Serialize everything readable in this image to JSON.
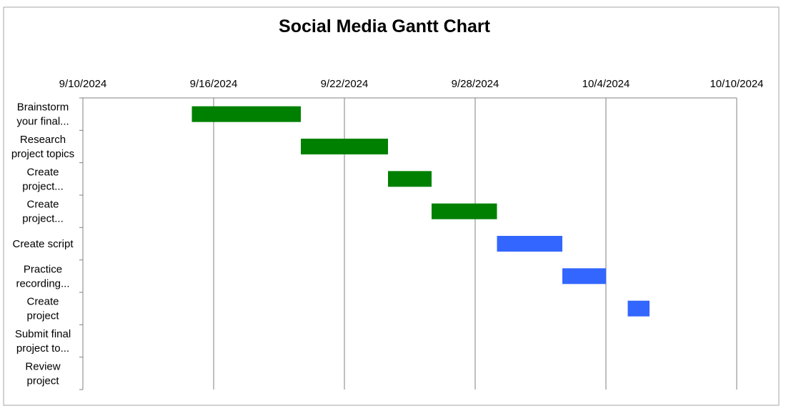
{
  "chart_data": {
    "type": "bar",
    "subtype": "gantt",
    "title": "Social Media Gantt Chart",
    "xlabel": "",
    "ylabel": "",
    "x_axis_position": "top",
    "xlim": [
      "9/10/2024",
      "10/10/2024"
    ],
    "x_ticks": [
      "9/10/2024",
      "9/16/2024",
      "9/22/2024",
      "9/28/2024",
      "10/4/2024",
      "10/10/2024"
    ],
    "grid": true,
    "legend": "none",
    "colors": {
      "phase_1": "#008000",
      "phase_2": "#3366FF",
      "gridline": "#808080",
      "border": "#A6A6A6"
    },
    "tasks": [
      {
        "label_lines": [
          "Brainstorm",
          "your final..."
        ],
        "start": "9/15/2024",
        "duration_days": 5,
        "color": "#008000"
      },
      {
        "label_lines": [
          "Research",
          "project topics"
        ],
        "start": "9/20/2024",
        "duration_days": 4,
        "color": "#008000"
      },
      {
        "label_lines": [
          "Create",
          "project..."
        ],
        "start": "9/24/2024",
        "duration_days": 2,
        "color": "#008000"
      },
      {
        "label_lines": [
          "Create",
          "project..."
        ],
        "start": "9/26/2024",
        "duration_days": 3,
        "color": "#008000"
      },
      {
        "label_lines": [
          "Create script"
        ],
        "start": "9/29/2024",
        "duration_days": 3,
        "color": "#3366FF"
      },
      {
        "label_lines": [
          "Practice",
          "recording..."
        ],
        "start": "10/2/2024",
        "duration_days": 2,
        "color": "#3366FF"
      },
      {
        "label_lines": [
          "Create",
          "project"
        ],
        "start": "10/5/2024",
        "duration_days": 1,
        "color": "#3366FF"
      },
      {
        "label_lines": [
          "Submit final",
          "project to..."
        ],
        "start": null,
        "duration_days": 0,
        "color": null
      },
      {
        "label_lines": [
          "Review",
          "project"
        ],
        "start": null,
        "duration_days": 0,
        "color": null
      }
    ]
  }
}
